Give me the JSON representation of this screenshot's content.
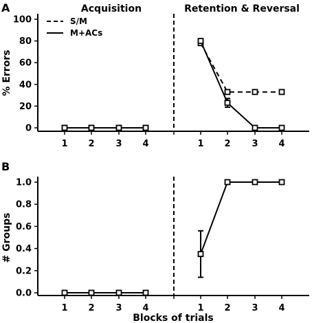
{
  "chart_data": [
    {
      "panel_letter": "A",
      "type": "line",
      "section_titles": [
        "Acquisition",
        "Retention & Reversal"
      ],
      "ylabel": "% Errors",
      "ylim": [
        0,
        100
      ],
      "yticks": [
        "0",
        "20",
        "40",
        "60",
        "80",
        "100"
      ],
      "acquisition_ticks": [
        "1",
        "2",
        "3",
        "4"
      ],
      "retention_ticks": [
        "1",
        "2",
        "3",
        "4"
      ],
      "legend": {
        "placement": "top-left",
        "entries": [
          "S/M",
          "M+ACs"
        ]
      },
      "series": [
        {
          "name": "S/M",
          "style": "dashed",
          "acquisition": [
            0,
            0,
            0,
            0
          ],
          "retention": [
            78,
            33,
            33,
            33
          ],
          "retention_err": [
            2,
            0,
            0,
            0
          ]
        },
        {
          "name": "M+ACs",
          "style": "solid",
          "acquisition": [
            0,
            0,
            0,
            0
          ],
          "retention": [
            80,
            23,
            0,
            0
          ],
          "retention_err": [
            2,
            4,
            0,
            0
          ]
        }
      ]
    },
    {
      "panel_letter": "B",
      "type": "line",
      "ylabel": "# Groups",
      "ylim": [
        0,
        1.0
      ],
      "yticks": [
        "0.0",
        "0.2",
        "0.4",
        "0.6",
        "0.8",
        "1.0"
      ],
      "xlabel": "Blocks of trials",
      "acquisition_ticks": [
        "1",
        "2",
        "3",
        "4"
      ],
      "retention_ticks": [
        "1",
        "2",
        "3",
        "4"
      ],
      "series": [
        {
          "style": "solid",
          "acquisition": [
            0,
            0,
            0,
            0
          ],
          "retention": [
            0.35,
            1.0,
            1.0,
            1.0
          ],
          "retention_err": [
            0.21,
            0,
            0,
            0
          ]
        }
      ]
    }
  ]
}
